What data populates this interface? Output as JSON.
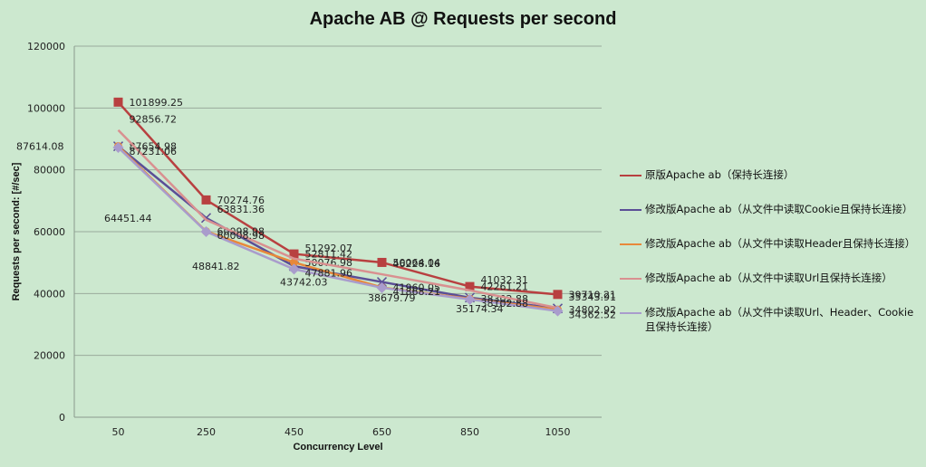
{
  "chart_data": {
    "type": "line",
    "title": "Apache AB @ Requests per second",
    "xlabel": "Concurrency Level",
    "ylabel": "Requests per second:  [#/sec]",
    "categories": [
      "50",
      "250",
      "450",
      "650",
      "850",
      "1050"
    ],
    "ylim": [
      0,
      120000
    ],
    "yticks": [
      0,
      20000,
      40000,
      60000,
      80000,
      100000,
      120000
    ],
    "grid": true,
    "legend_position": "right",
    "series": [
      {
        "name": "原版Apache ab（保持长连接）",
        "color": "#b84040",
        "marker": "square",
        "values": [
          101899.25,
          70274.76,
          52811.42,
          50064.04,
          42261.21,
          39710.21
        ]
      },
      {
        "name": "修改版Apache ab（从文件中读取Cookie且保持长连接）",
        "color": "#5b4e96",
        "marker": "x",
        "values": [
          87614.08,
          64451.44,
          48841.82,
          43742.03,
          38679.79,
          35174.34
        ]
      },
      {
        "name": "修改版Apache ab（从文件中读取Header且保持长连接）",
        "color": "#e8883a",
        "marker": "circle",
        "values": [
          87654.98,
          60098.98,
          50076.98,
          41960.05,
          38302.88,
          34802.92
        ]
      },
      {
        "name": "修改版Apache ab（从文件中读取Url且保持长连接）",
        "color": "#d99090",
        "marker": "none",
        "values": [
          92856.72,
          63831.36,
          51292.07,
          46228.16,
          41032.31,
          35343.91
        ]
      },
      {
        "name": "修改版Apache ab（从文件中读取Url、Header、Cookie且保持长连接）",
        "color": "#a99ccc",
        "marker": "diamond",
        "values": [
          87231.06,
          60008.98,
          47881.96,
          41868.21,
          38102.88,
          34362.52
        ]
      }
    ]
  },
  "legend": {
    "items": [
      {
        "label": "原版Apache ab（保持长连接）"
      },
      {
        "label": "修改版Apache ab（从文件中读取Cookie且保持长连接）"
      },
      {
        "label": "修改版Apache ab（从文件中读取Header且保持长连接）"
      },
      {
        "label": "修改版Apache ab（从文件中读取Url且保持长连接）"
      },
      {
        "label": "修改版Apache ab（从文件中读取Url、Header、Cookie且保持长连接）"
      }
    ]
  }
}
